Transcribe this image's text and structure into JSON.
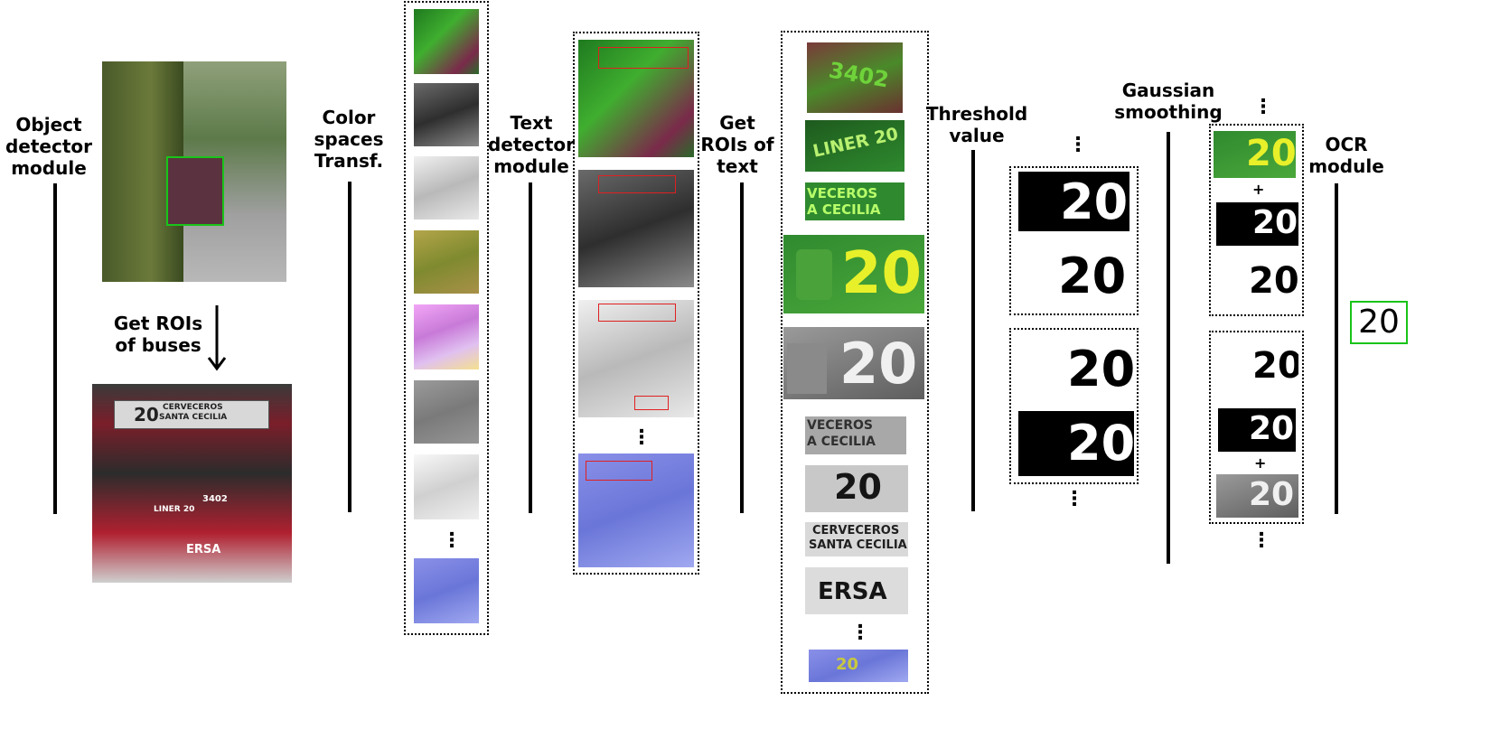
{
  "labels": {
    "object_detector": "Object\ndetector\nmodule",
    "get_rois_buses": "Get ROIs\nof buses",
    "color_spaces": "Color\nspaces\nTransf.",
    "text_detector": "Text\ndetector\nmodule",
    "get_rois_text": "Get\nROIs of\ntext",
    "threshold": "Threshold\nvalue",
    "gaussian": "Gaussian\nsmoothing",
    "ocr": "OCR\nmodule"
  },
  "ocr_result": "20",
  "ellipsis": "⋮",
  "plus": "+",
  "bus_text": {
    "route_number": "20",
    "destination_line1": "CERVECEROS",
    "destination_line2": "SANTA CECILIA",
    "liner": "LINER 20",
    "fleet_number": "3402",
    "brand": "ERSA"
  },
  "crop_text": {
    "c1": "3402",
    "c2": "LINER 20",
    "c3a": "VECEROS",
    "c3b": "A CECILIA",
    "c4": "20",
    "c5": "20",
    "c6a": "VECEROS",
    "c6b": "A CECILIA",
    "c7": "20",
    "c8a": "CERVECEROS",
    "c8b": "SANTA CECILIA",
    "c9": "ERSA",
    "c10": "20"
  },
  "colors": {
    "detection_box": "#19c419",
    "text_box": "#e02020",
    "ocr_box": "#19c419",
    "line": "#000000"
  }
}
